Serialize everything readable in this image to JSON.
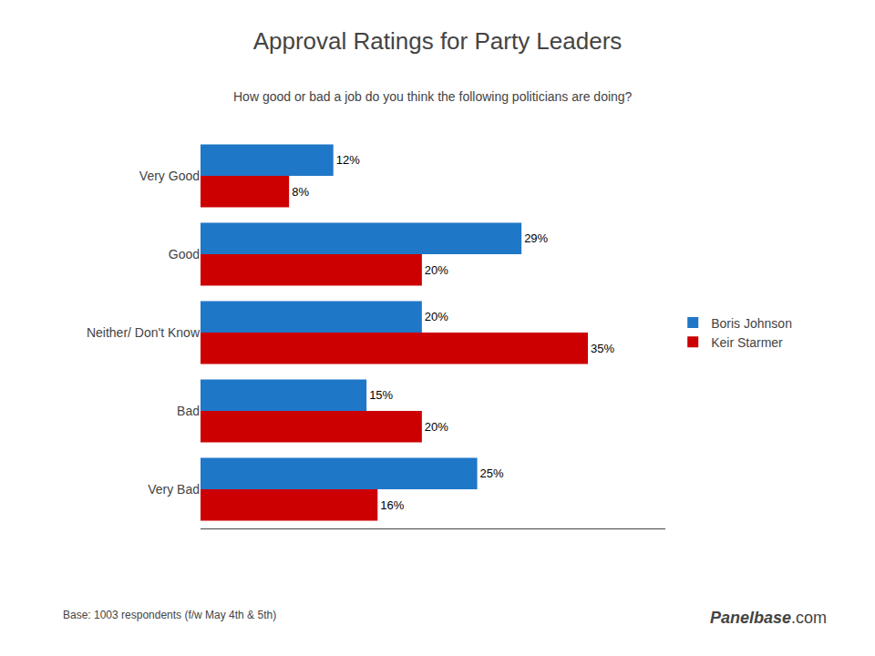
{
  "chart_data": {
    "type": "bar",
    "orientation": "horizontal",
    "title": "Approval Ratings for Party Leaders",
    "subtitle": "How good or bad a job do you think the following politicians are doing?",
    "categories": [
      "Very Good",
      "Good",
      "Neither/ Don't Know",
      "Bad",
      "Very Bad"
    ],
    "series": [
      {
        "name": "Boris Johnson",
        "color": "#1F77C8",
        "values": [
          12,
          29,
          20,
          15,
          25
        ],
        "value_labels": [
          "12%",
          "29%",
          "20%",
          "15%",
          "25%"
        ]
      },
      {
        "name": "Keir Starmer",
        "color": "#CC0000",
        "values": [
          8,
          20,
          35,
          20,
          16
        ],
        "value_labels": [
          "8%",
          "20%",
          "35%",
          "20%",
          "16%"
        ]
      }
    ],
    "xlim": [
      0,
      42
    ],
    "data_labels": true,
    "tick_labels": "y",
    "grid": false,
    "legend": "right",
    "annotations": [
      "Base: 1003 respondents (f/w May 4th & 5th)",
      "Panelbase",
      ".com"
    ]
  }
}
